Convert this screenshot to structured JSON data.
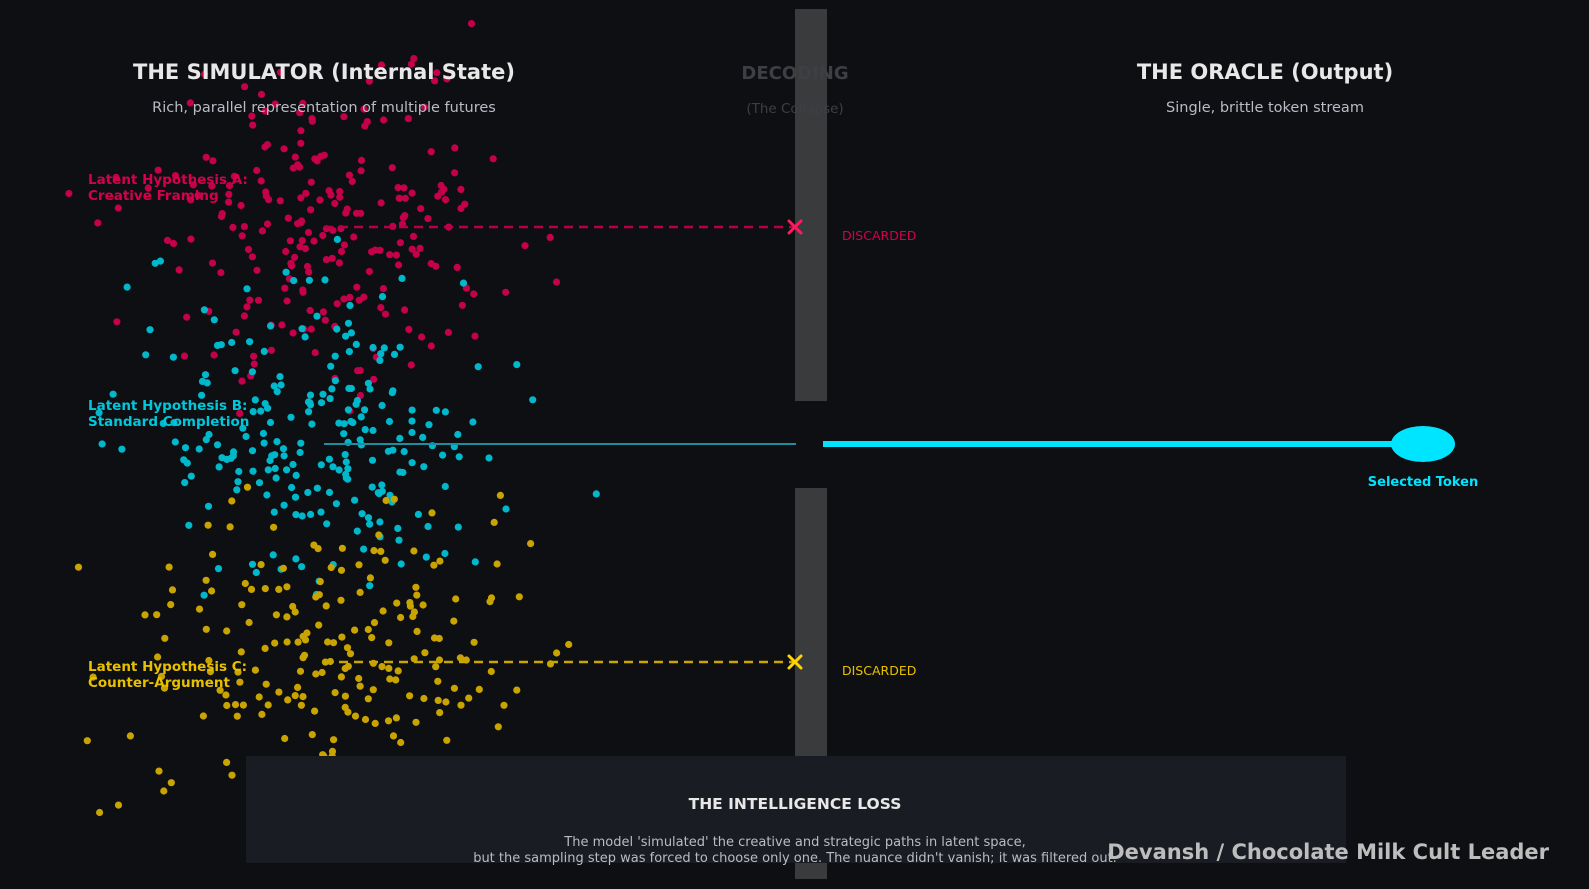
{
  "simulator": {
    "title": "THE SIMULATOR (Internal State)",
    "subtitle": "Rich, parallel representation of multiple futures"
  },
  "decoding": {
    "title": "DECODING",
    "subtitle": "(The Collapse)"
  },
  "oracle": {
    "title": "THE ORACLE (Output)",
    "subtitle": "Single, brittle token stream"
  },
  "hypotheses": [
    {
      "line1": "Latent Hypothesis A:",
      "line2": "Creative Framing",
      "color": "#d6004c",
      "outcome": "DISCARDED"
    },
    {
      "line1": "Latent Hypothesis B:",
      "line2": "Standard Completion",
      "color": "#00c8dc",
      "outcome": "Selected Token"
    },
    {
      "line1": "Latent Hypothesis C:",
      "line2": "Counter-Argument",
      "color": "#e8c000",
      "outcome": "DISCARDED"
    }
  ],
  "intelligence_loss": {
    "title": "THE INTELLIGENCE LOSS",
    "line1": "The model 'simulated' the creative and strategic paths in latent space,",
    "line2": "but the sampling step was forced to choose only one. The nuance didn't vanish; it was filtered out."
  },
  "credit": "Devansh / Chocolate Milk Cult Leader",
  "colors": {
    "background": "#0e0f13",
    "wall": "#3a3b3c",
    "hyp_a": "#d6004c",
    "hyp_b": "#00c8dc",
    "hyp_c": "#e8c000"
  }
}
